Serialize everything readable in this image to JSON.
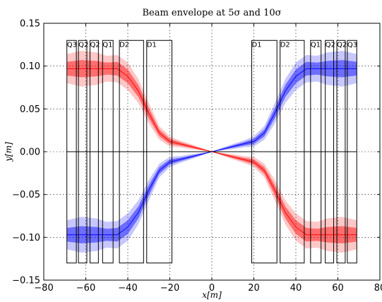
{
  "chart_data": {
    "type": "line",
    "title": "Beam envelope at 5σ and 10σ",
    "xlabel": "x[m]",
    "ylabel": "y[m]",
    "xlim": [
      -80,
      80
    ],
    "ylim": [
      -0.15,
      0.15
    ],
    "xticks": [
      -80,
      -60,
      -40,
      -20,
      0,
      20,
      40,
      60,
      80
    ],
    "xtick_labels": [
      "−80",
      "−60",
      "−40",
      "−20",
      "0",
      "20",
      "40",
      "60",
      "80"
    ],
    "yticks": [
      -0.15,
      -0.1,
      -0.05,
      0.0,
      0.05,
      0.1,
      0.15
    ],
    "ytick_labels": [
      "−0.15",
      "−0.10",
      "−0.05",
      "0.00",
      "0.05",
      "0.10",
      "0.15"
    ],
    "grid": true,
    "elements": [
      {
        "label": "Q3",
        "x0": -69,
        "x1": -64.5
      },
      {
        "label": "Q2",
        "x0": -63.5,
        "x1": -59.5
      },
      {
        "label": "Q2",
        "x0": -58,
        "x1": -54
      },
      {
        "label": "Q1",
        "x0": -52,
        "x1": -47
      },
      {
        "label": "D2",
        "x0": -44,
        "x1": -32.5
      },
      {
        "label": "D1",
        "x0": -31,
        "x1": -19
      },
      {
        "label": "D1",
        "x0": 19,
        "x1": 31
      },
      {
        "label": "D2",
        "x0": 32.5,
        "x1": 44
      },
      {
        "label": "Q1",
        "x0": 47,
        "x1": 52
      },
      {
        "label": "Q2",
        "x0": 54,
        "x1": 58
      },
      {
        "label": "Q2",
        "x0": 59.5,
        "x1": 63.5
      },
      {
        "label": "Q3",
        "x0": 64.5,
        "x1": 69
      }
    ],
    "element_y_range": [
      -0.13,
      0.13
    ],
    "series": [
      {
        "color": "#ff0000",
        "x": [
          -69,
          -62,
          -55,
          -50,
          -45,
          -40,
          -35,
          -30,
          -25,
          -20,
          -15,
          -10,
          -5,
          0,
          5,
          10,
          15,
          20,
          25,
          30,
          35,
          40,
          45,
          50,
          55,
          62,
          69
        ],
        "center": [
          0.097,
          0.097,
          0.097,
          0.097,
          0.097,
          0.088,
          0.071,
          0.045,
          0.022,
          0.012,
          0.009,
          0.006,
          0.003,
          0.0,
          -0.003,
          -0.006,
          -0.009,
          -0.012,
          -0.022,
          -0.045,
          -0.071,
          -0.088,
          -0.097,
          -0.097,
          -0.097,
          -0.097,
          -0.097
        ],
        "half_width_inner": [
          0.008,
          0.01,
          0.009,
          0.007,
          0.008,
          0.008,
          0.007,
          0.006,
          0.004,
          0.003,
          0.002,
          0.0015,
          0.001,
          0.0,
          0.001,
          0.0015,
          0.002,
          0.003,
          0.004,
          0.006,
          0.007,
          0.008,
          0.008,
          0.007,
          0.009,
          0.01,
          0.008
        ],
        "half_width_outer": [
          0.017,
          0.021,
          0.019,
          0.015,
          0.016,
          0.016,
          0.014,
          0.012,
          0.008,
          0.006,
          0.004,
          0.003,
          0.0015,
          0.0,
          0.0015,
          0.003,
          0.004,
          0.006,
          0.008,
          0.012,
          0.014,
          0.016,
          0.016,
          0.015,
          0.019,
          0.021,
          0.017
        ]
      },
      {
        "color": "#0000ff",
        "x": [
          -69,
          -62,
          -55,
          -50,
          -45,
          -40,
          -35,
          -30,
          -25,
          -20,
          -15,
          -10,
          -5,
          0,
          5,
          10,
          15,
          20,
          25,
          30,
          35,
          40,
          45,
          50,
          55,
          62,
          69
        ],
        "center": [
          -0.097,
          -0.097,
          -0.097,
          -0.097,
          -0.097,
          -0.088,
          -0.071,
          -0.045,
          -0.022,
          -0.012,
          -0.009,
          -0.006,
          -0.003,
          0.0,
          0.003,
          0.006,
          0.009,
          0.012,
          0.022,
          0.045,
          0.071,
          0.088,
          0.097,
          0.097,
          0.097,
          0.097,
          0.097
        ],
        "half_width_inner": [
          0.008,
          0.01,
          0.009,
          0.007,
          0.008,
          0.008,
          0.007,
          0.006,
          0.004,
          0.003,
          0.002,
          0.0015,
          0.001,
          0.0,
          0.001,
          0.0015,
          0.002,
          0.003,
          0.004,
          0.006,
          0.007,
          0.008,
          0.008,
          0.007,
          0.009,
          0.01,
          0.008
        ],
        "half_width_outer": [
          0.017,
          0.021,
          0.019,
          0.015,
          0.016,
          0.016,
          0.014,
          0.012,
          0.008,
          0.006,
          0.004,
          0.003,
          0.0015,
          0.0,
          0.0015,
          0.003,
          0.004,
          0.006,
          0.008,
          0.012,
          0.014,
          0.016,
          0.016,
          0.015,
          0.019,
          0.021,
          0.017
        ]
      }
    ]
  }
}
